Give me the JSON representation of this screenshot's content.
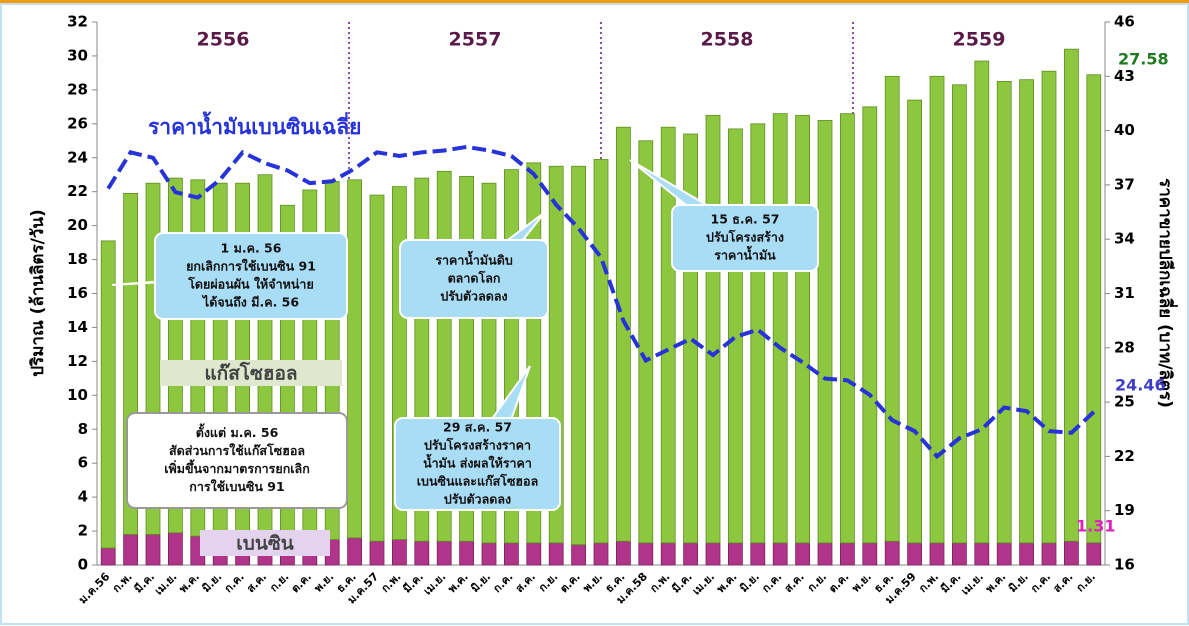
{
  "chart_data": {
    "type": "bar",
    "stacked": true,
    "y_label": "ปริมาณ (ล้านลิตร/วัน)",
    "y2_label": "ราคาขายปลีกเฉลี่ย (บาท/ลิตร)",
    "categories": [
      "ม.ค.56",
      "ก.พ.",
      "มี.ค.",
      "เม.ย.",
      "พ.ค.",
      "มิ.ย.",
      "ก.ค.",
      "ส.ค.",
      "ก.ย.",
      "ต.ค.",
      "พ.ย.",
      "ธ.ค.",
      "ม.ค.57",
      "ก.พ.",
      "มี.ค.",
      "เม.ย.",
      "พ.ค.",
      "มิ.ย.",
      "ก.ค.",
      "ส.ค.",
      "ก.ย.",
      "ต.ค.",
      "พ.ย.",
      "ธ.ค.",
      "ม.ค.58",
      "ก.พ.",
      "มี.ค.",
      "เม.ย.",
      "พ.ค.",
      "มิ.ย.",
      "ก.ค.",
      "ส.ค.",
      "ก.ย.",
      "ต.ค.",
      "พ.ย.",
      "ธ.ค.",
      "ม.ค.59",
      "ก.พ.",
      "มี.ค.",
      "เม.ย.",
      "พ.ค.",
      "มิ.ย.",
      "ก.ค.",
      "ส.ค.",
      "ก.ย."
    ],
    "years": [
      "2556",
      "2557",
      "2558",
      "2559"
    ],
    "series": [
      {
        "name": "เบนซิน",
        "color": "#b0358a",
        "values": [
          1.0,
          1.8,
          1.8,
          1.9,
          1.7,
          1.7,
          1.6,
          1.6,
          1.5,
          1.5,
          1.5,
          1.6,
          1.4,
          1.5,
          1.4,
          1.4,
          1.4,
          1.3,
          1.3,
          1.3,
          1.3,
          1.2,
          1.3,
          1.4,
          1.3,
          1.3,
          1.3,
          1.3,
          1.3,
          1.3,
          1.3,
          1.3,
          1.3,
          1.3,
          1.3,
          1.4,
          1.3,
          1.3,
          1.3,
          1.3,
          1.3,
          1.3,
          1.3,
          1.4,
          1.31
        ]
      },
      {
        "name": "แก๊สโซฮอล",
        "color": "#8dc63f",
        "values": [
          18.1,
          20.1,
          20.7,
          20.9,
          21.0,
          20.8,
          20.9,
          21.4,
          19.7,
          20.6,
          21.1,
          21.1,
          20.4,
          20.8,
          21.4,
          21.8,
          21.5,
          21.2,
          22.0,
          22.4,
          22.2,
          22.3,
          22.6,
          24.4,
          23.7,
          24.5,
          24.1,
          25.2,
          24.4,
          24.7,
          25.3,
          25.2,
          24.9,
          25.3,
          25.7,
          27.4,
          26.1,
          27.5,
          27.0,
          28.4,
          27.2,
          27.3,
          27.8,
          29.0,
          27.58
        ]
      },
      {
        "name": "ราคาน้ำมันเบนซินเฉลี่ย",
        "color": "#2633d8",
        "type": "line",
        "axis": "y2",
        "values": [
          36.8,
          38.8,
          38.5,
          36.6,
          36.3,
          37.3,
          38.8,
          38.2,
          37.8,
          37.1,
          37.2,
          37.9,
          38.8,
          38.6,
          38.8,
          38.9,
          39.1,
          38.9,
          38.6,
          37.6,
          35.9,
          34.6,
          33.0,
          29.5,
          27.3,
          27.9,
          28.5,
          27.6,
          28.6,
          29.0,
          28.0,
          27.2,
          26.3,
          26.2,
          25.4,
          24.0,
          23.4,
          22.0,
          23.0,
          23.5,
          24.7,
          24.5,
          23.4,
          23.3,
          24.46
        ]
      }
    ],
    "ylim": [
      0,
      32
    ],
    "yticks": [
      0,
      2,
      4,
      6,
      8,
      10,
      12,
      14,
      16,
      18,
      20,
      22,
      24,
      26,
      28,
      30,
      32
    ],
    "y2lim": [
      16,
      46
    ],
    "y2ticks": [
      16,
      19,
      22,
      25,
      28,
      31,
      34,
      37,
      40,
      43,
      46
    ],
    "annotations": [
      [
        "1 ม.ค. 56",
        "ยกเลิกการใช้เบนซิน 91",
        "โดยผ่อนผัน ให้จำหน่าย",
        "ได้จนถึง มี.ค. 56"
      ],
      [
        "ราคาน้ำมันดิบ",
        "ตลาดโลก",
        "ปรับตัวลดลง"
      ],
      [
        "15 ธ.ค. 57",
        "ปรับโครงสร้าง",
        "ราคาน้ำมัน"
      ],
      [
        "ตั้งแต่ ม.ค. 56",
        "สัดส่วนการใช้แก๊สโซฮอล",
        "เพิ่มขึ้นจากมาตรการยกเลิก",
        "การใช้เบนซิน 91"
      ],
      [
        "29 ส.ค. 57",
        "ปรับโครงสร้างราคา",
        "น้ำมัน ส่งผลให้ราคา",
        "เบนซินและแก๊สโซฮอล",
        "ปรับตัวลดลง"
      ]
    ]
  }
}
